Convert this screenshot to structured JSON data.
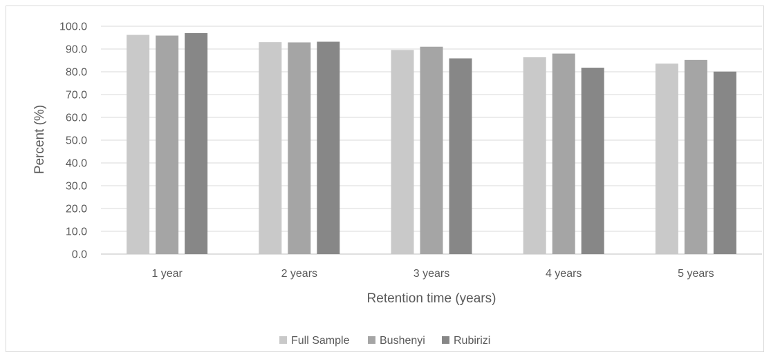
{
  "chart_data": {
    "type": "bar",
    "title": "",
    "xlabel": "Retention time (years)",
    "ylabel": "Percent (%)",
    "categories": [
      "1 year",
      "2 years",
      "3 years",
      "4 years",
      "5 years"
    ],
    "series": [
      {
        "name": "Full Sample",
        "color": "#c9c9c9",
        "values": [
          96.2,
          93.0,
          89.6,
          86.4,
          83.6
        ]
      },
      {
        "name": "Bushenyi",
        "color": "#a5a5a5",
        "values": [
          95.9,
          92.9,
          91.0,
          88.0,
          85.2
        ]
      },
      {
        "name": "Rubirizi",
        "color": "#878787",
        "values": [
          97.0,
          93.2,
          85.9,
          81.8,
          80.1
        ]
      }
    ],
    "ylim": [
      0,
      100
    ],
    "ytick_labels": [
      "0.0",
      "10.0",
      "20.0",
      "30.0",
      "40.0",
      "50.0",
      "60.0",
      "70.0",
      "80.0",
      "90.0",
      "100.0"
    ],
    "grid": true,
    "legend_position": "bottom"
  }
}
